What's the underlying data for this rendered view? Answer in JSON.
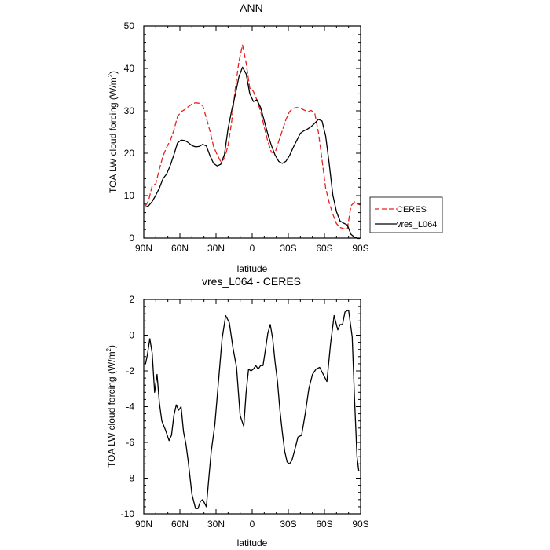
{
  "chart_data": [
    {
      "type": "line",
      "title": "ANN",
      "xlabel": "latitude",
      "ylabel_main": "TOA LW cloud forcing (W/m",
      "ylabel_sup": "2",
      "ylabel_end": ")",
      "xlim": [
        90,
        -90
      ],
      "ylim": [
        0,
        50
      ],
      "x_ticks": [
        90,
        60,
        30,
        0,
        -30,
        -60,
        -90
      ],
      "x_tick_labels": [
        "90N",
        "60N",
        "30N",
        "0",
        "30S",
        "60S",
        "90S"
      ],
      "y_ticks": [
        0,
        10,
        20,
        30,
        40,
        50
      ],
      "y_tick_labels": [
        "0",
        "10",
        "20",
        "30",
        "40",
        "50"
      ],
      "legend_position": "right",
      "series": [
        {
          "name": "CERES",
          "color": "#e8201e",
          "dash": "dashed",
          "x": [
            88.5,
            86,
            83,
            80,
            77,
            74,
            71,
            68,
            65,
            62,
            59,
            56,
            53,
            50,
            47,
            44,
            41,
            38,
            35,
            32,
            29,
            26,
            23,
            20,
            17,
            14,
            11,
            8,
            5,
            2,
            -1,
            -4,
            -7,
            -10,
            -13,
            -16,
            -19,
            -22,
            -25,
            -28,
            -31,
            -34,
            -37,
            -40,
            -43,
            -46,
            -49,
            -52,
            -55,
            -58,
            -61,
            -64,
            -67,
            -70,
            -73,
            -76,
            -79,
            -82,
            -85,
            -88,
            -89.5
          ],
          "y": [
            7.6,
            8.8,
            12.3,
            12.8,
            16.3,
            19.3,
            21.4,
            23.0,
            25.4,
            28.6,
            29.8,
            30.3,
            31.0,
            31.6,
            31.9,
            31.8,
            31.2,
            28.3,
            25.2,
            21.6,
            19.6,
            18.0,
            18.7,
            21.8,
            27.5,
            35.2,
            41.6,
            45.5,
            41.3,
            35.4,
            34.6,
            32.5,
            29.9,
            26.2,
            22.8,
            20.2,
            20.1,
            22.8,
            25.3,
            27.9,
            29.8,
            30.6,
            30.8,
            30.6,
            30.2,
            29.8,
            30.1,
            29.4,
            24.9,
            18.4,
            11.8,
            8.3,
            5.6,
            3.4,
            2.5,
            2.2,
            2.1,
            7.6,
            8.5,
            8.0,
            7.8
          ]
        },
        {
          "name": "vres_L064",
          "color": "#000000",
          "dash": "solid",
          "x": [
            88.5,
            86,
            83,
            80,
            77,
            74,
            71,
            68,
            65,
            62,
            59,
            56,
            53,
            50,
            47,
            44,
            41,
            38,
            35,
            32,
            29,
            26,
            23,
            20,
            17,
            14,
            11,
            8,
            5,
            2,
            -1,
            -4,
            -7,
            -10,
            -13,
            -16,
            -19,
            -22,
            -25,
            -28,
            -31,
            -34,
            -37,
            -40,
            -43,
            -46,
            -49,
            -52,
            -55,
            -58,
            -61,
            -64,
            -67,
            -70,
            -73,
            -76,
            -79,
            -82,
            -85,
            -88,
            -89.5
          ],
          "y": [
            7.3,
            7.6,
            8.6,
            10.1,
            11.8,
            14.0,
            15.1,
            17.1,
            19.6,
            22.4,
            23.1,
            23.0,
            22.5,
            21.8,
            21.5,
            21.6,
            22.1,
            21.7,
            19.4,
            17.6,
            17.0,
            17.4,
            19.7,
            25.8,
            30.1,
            33.8,
            38.0,
            40.3,
            38.7,
            34.1,
            32.2,
            32.6,
            30.8,
            27.7,
            24.5,
            21.8,
            19.6,
            18.1,
            17.6,
            18.1,
            19.4,
            21.3,
            23.0,
            24.7,
            25.3,
            25.7,
            26.3,
            27.1,
            28.0,
            27.6,
            24.1,
            17.4,
            10.1,
            6.2,
            4.0,
            3.5,
            3.1,
            0.9,
            0.2,
            -0.1,
            -0.1
          ]
        }
      ]
    },
    {
      "type": "line",
      "title": "vres_L064 - CERES",
      "xlabel": "latitude",
      "ylabel_main": "TOA LW cloud forcing (W/m",
      "ylabel_sup": "2",
      "ylabel_end": ")",
      "xlim": [
        90,
        -90
      ],
      "ylim": [
        -10,
        2
      ],
      "x_ticks": [
        90,
        60,
        30,
        0,
        -30,
        -60,
        -90
      ],
      "x_tick_labels": [
        "90N",
        "60N",
        "30N",
        "0",
        "30S",
        "60S",
        "90S"
      ],
      "y_ticks": [
        -10,
        -8,
        -6,
        -4,
        -2,
        0,
        2
      ],
      "y_tick_labels": [
        "-10",
        "-8",
        "-6",
        "-4",
        "-2",
        "0",
        "2"
      ],
      "series": [
        {
          "color": "#000000",
          "dash": "solid",
          "x": [
            88.5,
            87,
            85,
            83,
            81,
            79,
            77,
            75,
            72,
            69,
            67,
            65,
            63,
            61,
            59,
            57,
            55,
            53,
            50,
            47,
            45,
            43,
            41,
            38,
            36,
            34,
            31,
            28,
            25,
            22,
            19,
            16,
            13,
            10,
            7,
            5,
            3,
            1,
            -1,
            -3,
            -5,
            -7,
            -9,
            -11,
            -13,
            -15,
            -17,
            -19,
            -21,
            -23,
            -25,
            -27,
            -29,
            -31,
            -33,
            -35,
            -38,
            -41,
            -44,
            -47,
            -50,
            -53,
            -56,
            -59,
            -62,
            -65,
            -68,
            -71,
            -73,
            -75,
            -77,
            -80,
            -83,
            -85,
            -87,
            -88.5
          ],
          "y": [
            -1.6,
            -1.1,
            -0.2,
            -1.0,
            -3.2,
            -2.2,
            -3.8,
            -4.8,
            -5.3,
            -5.9,
            -5.6,
            -4.5,
            -3.9,
            -4.2,
            -4.0,
            -5.4,
            -6.1,
            -7.1,
            -8.9,
            -9.7,
            -9.7,
            -9.3,
            -9.2,
            -9.6,
            -8.0,
            -6.5,
            -5.0,
            -2.6,
            -0.2,
            1.1,
            0.7,
            -0.7,
            -1.8,
            -4.5,
            -5.1,
            -3.2,
            -1.9,
            -2.0,
            -1.9,
            -1.7,
            -1.9,
            -1.7,
            -1.7,
            -0.8,
            0.1,
            0.6,
            -0.2,
            -1.5,
            -2.6,
            -4.2,
            -5.4,
            -6.5,
            -7.1,
            -7.2,
            -7.0,
            -6.5,
            -5.7,
            -5.6,
            -4.4,
            -3.0,
            -2.2,
            -1.9,
            -1.8,
            -2.2,
            -2.6,
            -0.5,
            1.1,
            0.3,
            0.6,
            0.6,
            1.3,
            1.4,
            -0.1,
            -3.6,
            -6.8,
            -7.6
          ]
        }
      ]
    }
  ]
}
